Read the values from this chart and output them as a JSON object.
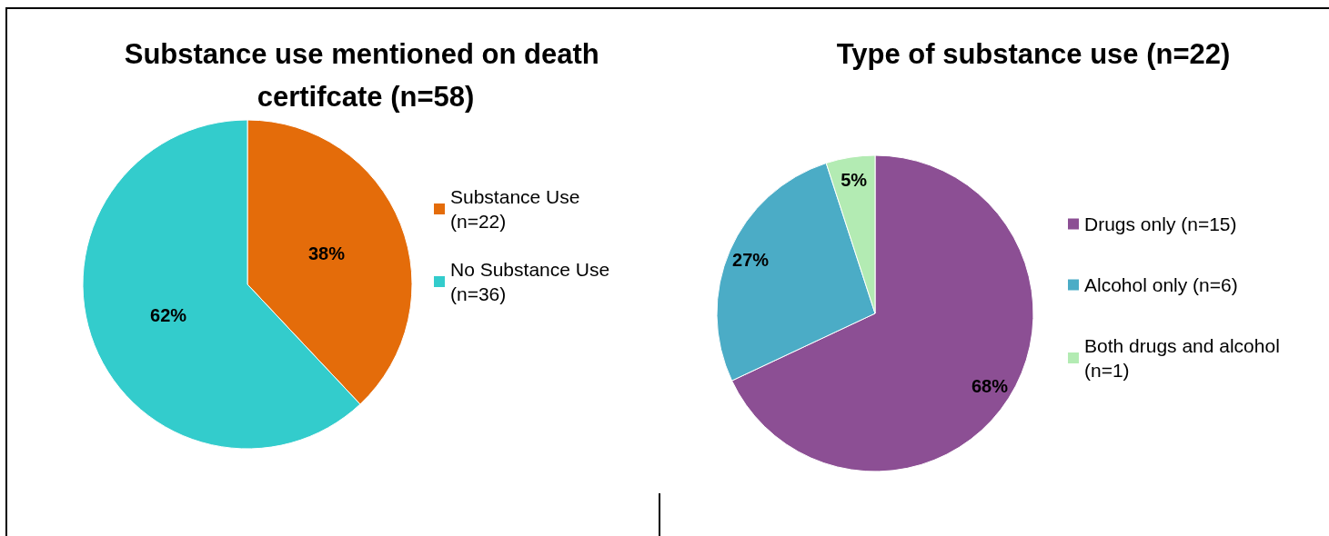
{
  "chart_data": [
    {
      "type": "pie",
      "title": "Substance use mentioned on death certifcate (n=58)",
      "categories": [
        "Substance Use (n=22)",
        "No Substance Use (n=36)"
      ],
      "values": [
        38,
        62
      ],
      "colors": [
        "#e46c0a",
        "#33cccc"
      ],
      "value_labels": [
        "38%",
        "62%"
      ],
      "legend": "right"
    },
    {
      "type": "pie",
      "title": "Type of substance use (n=22)",
      "categories": [
        "Drugs only (n=15)",
        "Alcohol only (n=6)",
        "Both drugs and alcohol (n=1)"
      ],
      "values": [
        68,
        27,
        5
      ],
      "colors": [
        "#8c4f94",
        "#4bacc6",
        "#b3ebb3"
      ],
      "value_labels": [
        "68%",
        "27%",
        "5%"
      ],
      "legend": "right"
    }
  ]
}
